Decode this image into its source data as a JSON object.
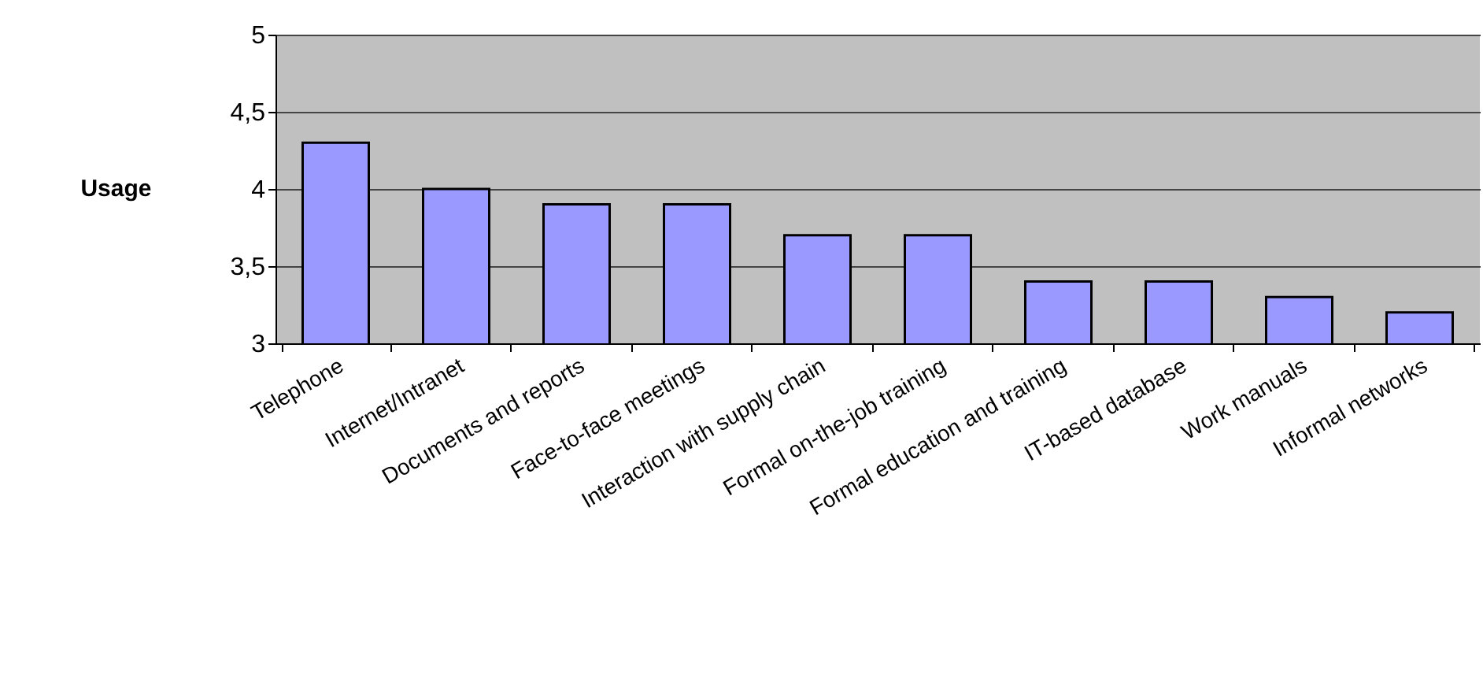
{
  "chart_data": {
    "type": "bar",
    "ylabel": "Usage",
    "categories": [
      "Telephone",
      "Internet/Intranet",
      "Documents and reports",
      "Face-to-face meetings",
      "Interaction with supply chain",
      "Formal on-the-job training",
      "Formal education and training",
      "IT-based database",
      "Work manuals",
      "Informal networks"
    ],
    "values": [
      4.3,
      4.0,
      3.9,
      3.9,
      3.7,
      3.7,
      3.4,
      3.4,
      3.3,
      3.2
    ],
    "color": "#9999ff",
    "ylim": [
      3,
      5
    ],
    "yticks": [
      3,
      {
        "value": 3.5,
        "label": "3,5"
      },
      4,
      {
        "value": 4.5,
        "label": "4,5"
      },
      5
    ],
    "grid": "y"
  }
}
